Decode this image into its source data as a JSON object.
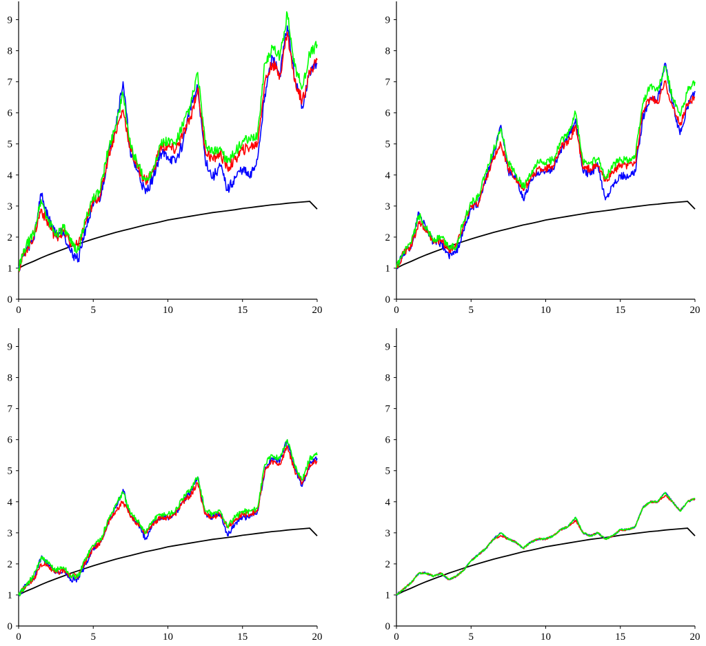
{
  "colors": {
    "background": "#ffffff",
    "blue": "#0000ff",
    "red": "#ff0000",
    "green": "#00ff00",
    "reference": "#000000"
  },
  "chart_data": [
    {
      "type": "line",
      "panel": "top-left",
      "xlim": [
        0,
        20
      ],
      "ylim": [
        0,
        9.5
      ],
      "xticks": [
        "0",
        "5",
        "10",
        "15",
        "20"
      ],
      "yticks": [
        "0",
        "1",
        "2",
        "3",
        "4",
        "5",
        "6",
        "7",
        "8",
        "9"
      ],
      "grid": false,
      "x": [
        0,
        0.5,
        1,
        1.5,
        2,
        2.5,
        3,
        3.5,
        4,
        4.5,
        5,
        5.5,
        6,
        6.5,
        7,
        7.5,
        8,
        8.5,
        9,
        9.5,
        10,
        10.5,
        11,
        11.5,
        12,
        12.5,
        13,
        13.5,
        14,
        14.5,
        15,
        15.5,
        16,
        16.5,
        17,
        17.5,
        18,
        18.5,
        19,
        19.5,
        20
      ],
      "series": [
        {
          "color": "blue",
          "values": [
            1.0,
            1.6,
            1.9,
            3.4,
            2.6,
            2.1,
            2.2,
            1.5,
            1.3,
            2.3,
            3.0,
            3.3,
            4.6,
            5.6,
            7.0,
            4.6,
            4.1,
            3.4,
            3.9,
            4.7,
            4.6,
            4.4,
            5.0,
            6.2,
            6.8,
            4.5,
            3.9,
            4.3,
            3.5,
            3.9,
            4.2,
            3.9,
            4.5,
            6.6,
            7.8,
            7.2,
            8.8,
            7.1,
            6.2,
            7.3,
            7.6
          ]
        },
        {
          "color": "red",
          "values": [
            1.0,
            1.6,
            2.0,
            2.9,
            2.4,
            2.0,
            2.2,
            1.8,
            1.7,
            2.5,
            3.1,
            3.4,
            4.6,
            5.4,
            6.1,
            4.8,
            4.2,
            3.8,
            4.1,
            4.9,
            4.9,
            4.8,
            5.3,
            5.8,
            6.8,
            4.8,
            4.5,
            4.7,
            4.2,
            4.5,
            4.8,
            4.9,
            5.0,
            7.0,
            7.6,
            7.2,
            8.6,
            7.0,
            6.4,
            7.3,
            7.7
          ]
        },
        {
          "color": "green",
          "values": [
            1.0,
            1.7,
            2.1,
            3.2,
            2.5,
            2.1,
            2.3,
            1.8,
            1.6,
            2.6,
            3.2,
            3.6,
            4.8,
            5.6,
            6.6,
            4.9,
            4.3,
            3.8,
            4.2,
            5.0,
            5.1,
            5.0,
            5.6,
            6.2,
            7.3,
            5.0,
            4.7,
            4.9,
            4.4,
            4.7,
            5.1,
            5.1,
            5.3,
            7.6,
            8.1,
            7.8,
            9.2,
            7.5,
            6.8,
            7.9,
            8.2
          ]
        },
        {
          "color": "reference",
          "values": [
            1.0,
            1.12,
            1.22,
            1.33,
            1.43,
            1.52,
            1.61,
            1.7,
            1.78,
            1.86,
            1.94,
            2.01,
            2.08,
            2.15,
            2.21,
            2.27,
            2.33,
            2.39,
            2.44,
            2.49,
            2.55,
            2.59,
            2.63,
            2.67,
            2.71,
            2.75,
            2.79,
            2.82,
            2.85,
            2.88,
            2.92,
            2.95,
            2.98,
            3.01,
            3.04,
            3.06,
            3.09,
            3.11,
            3.13,
            3.15,
            2.9
          ]
        }
      ]
    },
    {
      "type": "line",
      "panel": "top-right",
      "xlim": [
        0,
        20
      ],
      "ylim": [
        0,
        9.5
      ],
      "xticks": [
        "0",
        "5",
        "10",
        "15",
        "20"
      ],
      "yticks": [
        "0",
        "1",
        "2",
        "3",
        "4",
        "5",
        "6",
        "7",
        "8",
        "9"
      ],
      "grid": false,
      "x": [
        0,
        0.5,
        1,
        1.5,
        2,
        2.5,
        3,
        3.5,
        4,
        4.5,
        5,
        5.5,
        6,
        6.5,
        7,
        7.5,
        8,
        8.5,
        9,
        9.5,
        10,
        10.5,
        11,
        11.5,
        12,
        12.5,
        13,
        13.5,
        14,
        14.5,
        15,
        15.5,
        16,
        16.5,
        17,
        17.5,
        18,
        18.5,
        19,
        19.5,
        20
      ],
      "series": [
        {
          "color": "blue",
          "values": [
            1.0,
            1.5,
            1.7,
            2.8,
            2.3,
            1.8,
            1.8,
            1.4,
            1.5,
            2.2,
            2.9,
            3.1,
            3.9,
            4.6,
            5.6,
            4.1,
            3.9,
            3.2,
            3.8,
            4.1,
            4.1,
            4.2,
            4.8,
            5.2,
            5.8,
            4.1,
            4.0,
            4.3,
            3.2,
            3.7,
            4.0,
            3.9,
            4.1,
            5.8,
            6.5,
            6.4,
            7.6,
            6.3,
            5.3,
            6.2,
            6.7
          ]
        },
        {
          "color": "red",
          "values": [
            1.0,
            1.5,
            1.7,
            2.5,
            2.2,
            1.8,
            1.9,
            1.6,
            1.7,
            2.4,
            3.0,
            3.1,
            3.9,
            4.5,
            5.0,
            4.2,
            3.9,
            3.5,
            3.9,
            4.2,
            4.2,
            4.3,
            4.9,
            5.0,
            5.6,
            4.2,
            4.2,
            4.3,
            3.8,
            4.1,
            4.3,
            4.3,
            4.4,
            6.0,
            6.5,
            6.3,
            7.0,
            6.2,
            5.6,
            6.3,
            6.5
          ]
        },
        {
          "color": "green",
          "values": [
            1.0,
            1.5,
            1.8,
            2.7,
            2.3,
            1.9,
            2.0,
            1.7,
            1.7,
            2.5,
            3.1,
            3.3,
            4.1,
            4.8,
            5.5,
            4.4,
            4.0,
            3.6,
            4.0,
            4.4,
            4.4,
            4.5,
            5.1,
            5.3,
            6.0,
            4.4,
            4.4,
            4.5,
            3.9,
            4.3,
            4.5,
            4.5,
            4.6,
            6.3,
            6.9,
            6.7,
            7.5,
            6.5,
            5.9,
            6.7,
            7.0
          ]
        },
        {
          "color": "reference",
          "values": [
            1.0,
            1.12,
            1.22,
            1.33,
            1.43,
            1.52,
            1.61,
            1.7,
            1.78,
            1.86,
            1.94,
            2.01,
            2.08,
            2.15,
            2.21,
            2.27,
            2.33,
            2.39,
            2.44,
            2.49,
            2.55,
            2.59,
            2.63,
            2.67,
            2.71,
            2.75,
            2.79,
            2.82,
            2.85,
            2.88,
            2.92,
            2.95,
            2.98,
            3.01,
            3.04,
            3.06,
            3.09,
            3.11,
            3.13,
            3.15,
            2.9
          ]
        }
      ]
    },
    {
      "type": "line",
      "panel": "bottom-left",
      "xlim": [
        0,
        20
      ],
      "ylim": [
        0,
        9.5
      ],
      "xticks": [
        "0",
        "5",
        "10",
        "15",
        "20"
      ],
      "yticks": [
        "0",
        "1",
        "2",
        "3",
        "4",
        "5",
        "6",
        "7",
        "8",
        "9"
      ],
      "grid": false,
      "x": [
        0,
        0.5,
        1,
        1.5,
        2,
        2.5,
        3,
        3.5,
        4,
        4.5,
        5,
        5.5,
        6,
        6.5,
        7,
        7.5,
        8,
        8.5,
        9,
        9.5,
        10,
        10.5,
        11,
        11.5,
        12,
        12.5,
        13,
        13.5,
        14,
        14.5,
        15,
        15.5,
        16,
        16.5,
        17,
        17.5,
        18,
        18.5,
        19,
        19.5,
        20
      ],
      "series": [
        {
          "color": "blue",
          "values": [
            1.0,
            1.3,
            1.5,
            2.2,
            2.0,
            1.7,
            1.8,
            1.5,
            1.5,
            2.0,
            2.5,
            2.7,
            3.3,
            3.8,
            4.4,
            3.5,
            3.3,
            2.8,
            3.3,
            3.5,
            3.5,
            3.6,
            4.0,
            4.3,
            4.8,
            3.6,
            3.5,
            3.6,
            2.9,
            3.3,
            3.5,
            3.5,
            3.7,
            5.0,
            5.4,
            5.3,
            6.0,
            5.1,
            4.5,
            5.2,
            5.4
          ]
        },
        {
          "color": "red",
          "values": [
            1.0,
            1.3,
            1.5,
            2.0,
            1.9,
            1.7,
            1.8,
            1.6,
            1.6,
            2.1,
            2.5,
            2.7,
            3.3,
            3.7,
            4.0,
            3.5,
            3.3,
            3.0,
            3.3,
            3.5,
            3.5,
            3.6,
            4.0,
            4.2,
            4.6,
            3.6,
            3.5,
            3.6,
            3.2,
            3.4,
            3.6,
            3.6,
            3.7,
            5.0,
            5.3,
            5.2,
            5.8,
            5.0,
            4.6,
            5.2,
            5.3
          ]
        },
        {
          "color": "green",
          "values": [
            1.0,
            1.3,
            1.6,
            2.2,
            2.0,
            1.8,
            1.9,
            1.6,
            1.6,
            2.2,
            2.6,
            2.8,
            3.4,
            3.9,
            4.3,
            3.6,
            3.4,
            3.0,
            3.4,
            3.6,
            3.6,
            3.7,
            4.1,
            4.4,
            4.8,
            3.7,
            3.6,
            3.7,
            3.2,
            3.5,
            3.7,
            3.7,
            3.8,
            5.2,
            5.5,
            5.4,
            6.0,
            5.2,
            4.7,
            5.4,
            5.5
          ]
        },
        {
          "color": "reference",
          "values": [
            1.0,
            1.12,
            1.22,
            1.33,
            1.43,
            1.52,
            1.61,
            1.7,
            1.78,
            1.86,
            1.94,
            2.01,
            2.08,
            2.15,
            2.21,
            2.27,
            2.33,
            2.39,
            2.44,
            2.49,
            2.55,
            2.59,
            2.63,
            2.67,
            2.71,
            2.75,
            2.79,
            2.82,
            2.85,
            2.88,
            2.92,
            2.95,
            2.98,
            3.01,
            3.04,
            3.06,
            3.09,
            3.11,
            3.13,
            3.15,
            2.9
          ]
        }
      ]
    },
    {
      "type": "line",
      "panel": "bottom-right",
      "xlim": [
        0,
        20
      ],
      "ylim": [
        0,
        9.5
      ],
      "xticks": [
        "0",
        "5",
        "10",
        "15",
        "20"
      ],
      "yticks": [
        "0",
        "1",
        "2",
        "3",
        "4",
        "5",
        "6",
        "7",
        "8",
        "9"
      ],
      "grid": false,
      "x": [
        0,
        0.5,
        1,
        1.5,
        2,
        2.5,
        3,
        3.5,
        4,
        4.5,
        5,
        5.5,
        6,
        6.5,
        7,
        7.5,
        8,
        8.5,
        9,
        9.5,
        10,
        10.5,
        11,
        11.5,
        12,
        12.5,
        13,
        13.5,
        14,
        14.5,
        15,
        15.5,
        16,
        16.5,
        17,
        17.5,
        18,
        18.5,
        19,
        19.5,
        20
      ],
      "series": [
        {
          "color": "blue",
          "values": [
            1.0,
            1.2,
            1.4,
            1.7,
            1.7,
            1.6,
            1.7,
            1.5,
            1.6,
            1.8,
            2.1,
            2.3,
            2.5,
            2.8,
            3.0,
            2.8,
            2.7,
            2.5,
            2.7,
            2.8,
            2.8,
            2.9,
            3.1,
            3.2,
            3.5,
            3.0,
            2.9,
            3.0,
            2.8,
            2.9,
            3.1,
            3.1,
            3.2,
            3.8,
            4.0,
            4.0,
            4.3,
            4.0,
            3.7,
            4.0,
            4.1
          ]
        },
        {
          "color": "red",
          "values": [
            1.0,
            1.2,
            1.4,
            1.7,
            1.7,
            1.6,
            1.7,
            1.5,
            1.6,
            1.8,
            2.1,
            2.3,
            2.5,
            2.8,
            2.9,
            2.8,
            2.7,
            2.5,
            2.7,
            2.8,
            2.8,
            2.9,
            3.1,
            3.2,
            3.4,
            3.0,
            2.9,
            3.0,
            2.8,
            2.9,
            3.1,
            3.1,
            3.2,
            3.8,
            4.0,
            4.0,
            4.2,
            4.0,
            3.7,
            4.0,
            4.1
          ]
        },
        {
          "color": "green",
          "values": [
            1.0,
            1.2,
            1.4,
            1.7,
            1.7,
            1.6,
            1.7,
            1.5,
            1.6,
            1.8,
            2.1,
            2.3,
            2.5,
            2.8,
            3.0,
            2.8,
            2.7,
            2.5,
            2.7,
            2.8,
            2.8,
            2.9,
            3.1,
            3.2,
            3.5,
            3.0,
            2.9,
            3.0,
            2.8,
            2.9,
            3.1,
            3.1,
            3.2,
            3.8,
            4.0,
            4.0,
            4.3,
            4.0,
            3.7,
            4.0,
            4.1
          ]
        },
        {
          "color": "reference",
          "values": [
            1.0,
            1.12,
            1.22,
            1.33,
            1.43,
            1.52,
            1.61,
            1.7,
            1.78,
            1.86,
            1.94,
            2.01,
            2.08,
            2.15,
            2.21,
            2.27,
            2.33,
            2.39,
            2.44,
            2.49,
            2.55,
            2.59,
            2.63,
            2.67,
            2.71,
            2.75,
            2.79,
            2.82,
            2.85,
            2.88,
            2.92,
            2.95,
            2.98,
            3.01,
            3.04,
            3.06,
            3.09,
            3.11,
            3.13,
            3.15,
            2.9
          ]
        }
      ]
    }
  ]
}
